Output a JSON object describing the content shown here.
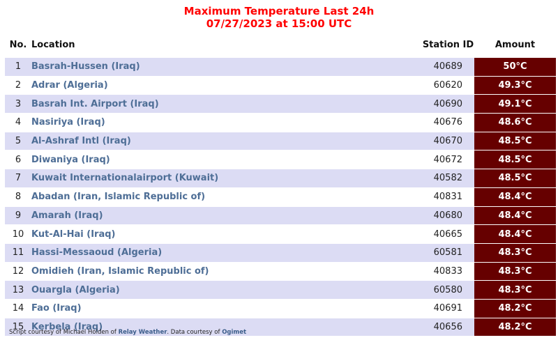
{
  "title": {
    "line1": "Maximum Temperature Last 24h",
    "line2": "07/27/2023 at 15:00 UTC"
  },
  "columns": {
    "no": "No.",
    "location": "Location",
    "station_id": "Station ID",
    "amount": "Amount"
  },
  "rows": [
    {
      "no": "1",
      "location": "Basrah-Hussen (Iraq)",
      "station_id": "40689",
      "amount": "50°C"
    },
    {
      "no": "2",
      "location": "Adrar (Algeria)",
      "station_id": "60620",
      "amount": "49.3°C"
    },
    {
      "no": "3",
      "location": "Basrah Int. Airport (Iraq)",
      "station_id": "40690",
      "amount": "49.1°C"
    },
    {
      "no": "4",
      "location": "Nasiriya (Iraq)",
      "station_id": "40676",
      "amount": "48.6°C"
    },
    {
      "no": "5",
      "location": "Al-Ashraf Intl (Iraq)",
      "station_id": "40670",
      "amount": "48.5°C"
    },
    {
      "no": "6",
      "location": "Diwaniya (Iraq)",
      "station_id": "40672",
      "amount": "48.5°C"
    },
    {
      "no": "7",
      "location": "Kuwait Internationalairport (Kuwait)",
      "station_id": "40582",
      "amount": "48.5°C"
    },
    {
      "no": "8",
      "location": "Abadan (Iran, Islamic Republic of)",
      "station_id": "40831",
      "amount": "48.4°C"
    },
    {
      "no": "9",
      "location": "Amarah (Iraq)",
      "station_id": "40680",
      "amount": "48.4°C"
    },
    {
      "no": "10",
      "location": "Kut-Al-Hai (Iraq)",
      "station_id": "40665",
      "amount": "48.4°C"
    },
    {
      "no": "11",
      "location": "Hassi-Messaoud (Algeria)",
      "station_id": "60581",
      "amount": "48.3°C"
    },
    {
      "no": "12",
      "location": "Omidieh (Iran, Islamic Republic of)",
      "station_id": "40833",
      "amount": "48.3°C"
    },
    {
      "no": "13",
      "location": "Ouargla (Algeria)",
      "station_id": "60580",
      "amount": "48.3°C"
    },
    {
      "no": "14",
      "location": "Fao (Iraq)",
      "station_id": "40691",
      "amount": "48.2°C"
    },
    {
      "no": "15",
      "location": "Kerbela (Iraq)",
      "station_id": "40656",
      "amount": "48.2°C"
    }
  ],
  "footer": {
    "prefix": "Script courtesy of  Michael Holden of ",
    "link1": "Relay Weather",
    "middle": ". Data courtesy of ",
    "link2": "Ogimet"
  },
  "colors": {
    "title": "#ff0000",
    "row_stripe": "#dcdcf4",
    "amount_bg": "#660000",
    "location_text": "#4e6e96"
  }
}
